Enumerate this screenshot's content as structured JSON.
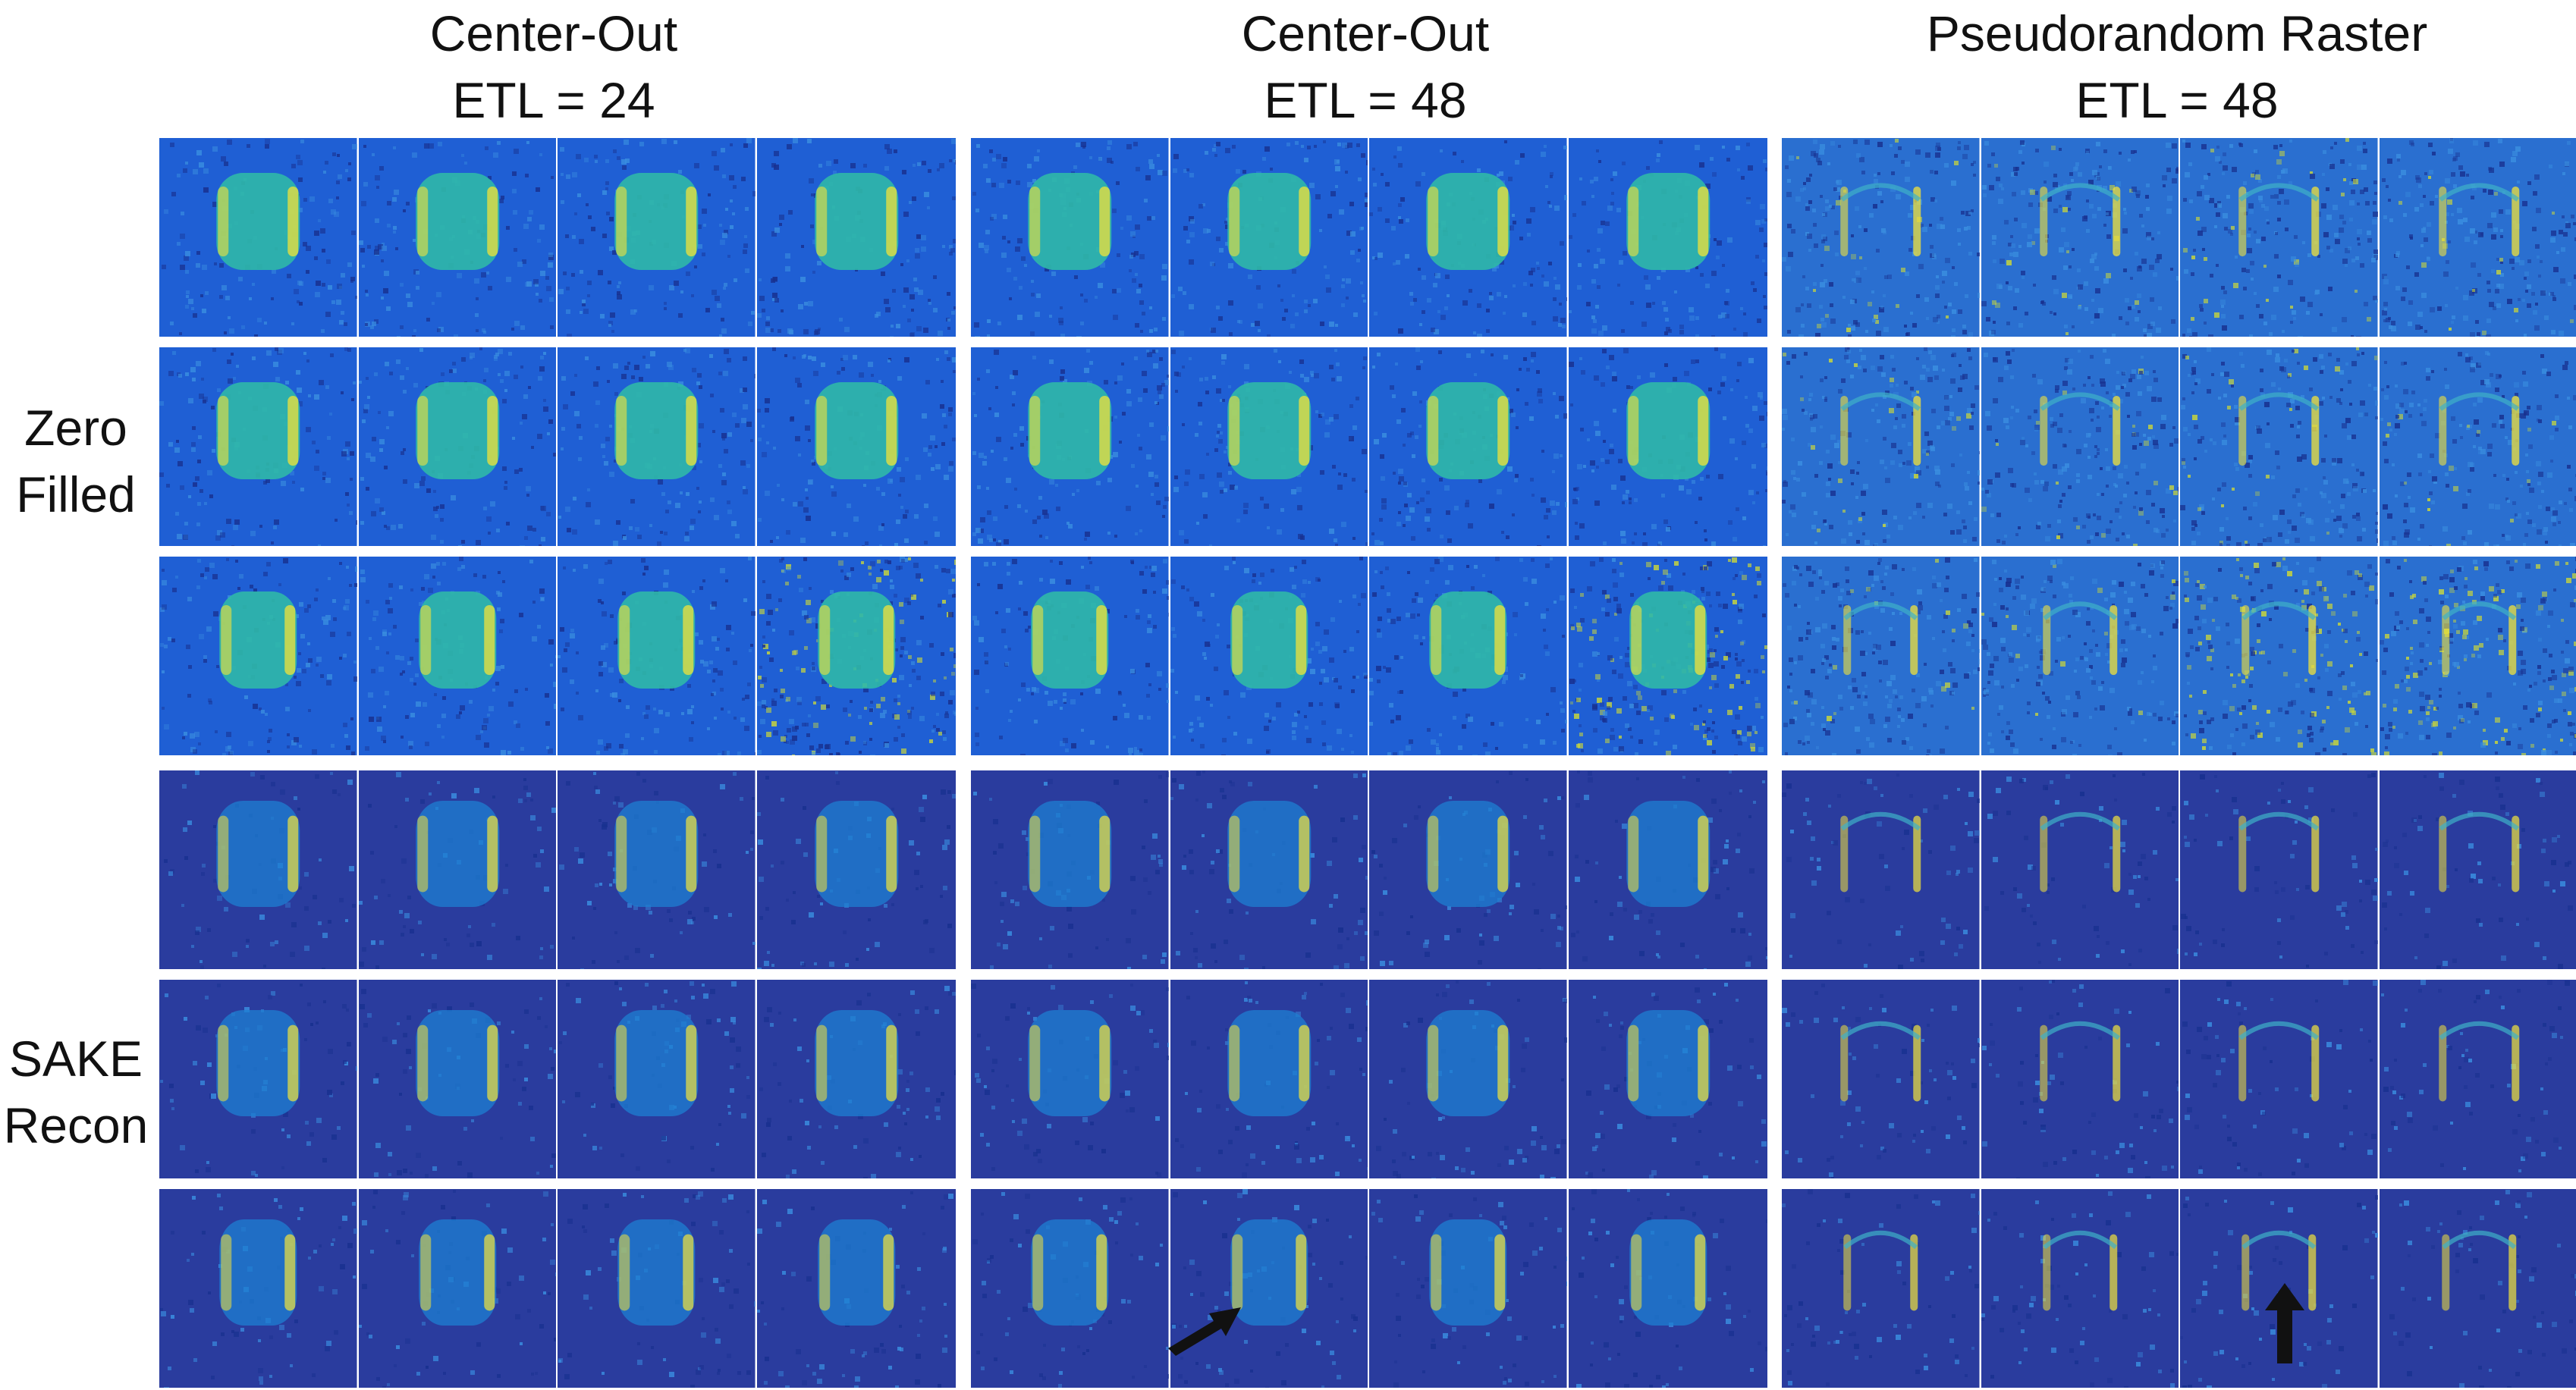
{
  "column_headers": [
    {
      "line1": "Center-Out",
      "line2": "ETL = 24"
    },
    {
      "line1": "Center-Out",
      "line2": "ETL = 48"
    },
    {
      "line1": "Pseudorandom Raster",
      "line2": "ETL = 48"
    }
  ],
  "row_groups": [
    {
      "line1": "Zero",
      "line2": "Filled"
    },
    {
      "line1": "SAKE",
      "line2": "Recon"
    }
  ],
  "colors": {
    "zero_filled_background": "#1f5fd4",
    "sake_background": "#2a3c9e",
    "object_fill": "#2fb8a8",
    "object_edge": "#f2e23a",
    "noisy_yellow": "#c9d63a",
    "grid_line": "#ffffff",
    "arrow": "#111111"
  },
  "annotations": [
    {
      "name": "diagonal-arrow",
      "icon": "arrow-up-right-icon",
      "column": 2,
      "subcolumn": 2
    },
    {
      "name": "vertical-arrow",
      "icon": "arrow-up-icon",
      "column": 3,
      "subcolumn": 3
    }
  ]
}
